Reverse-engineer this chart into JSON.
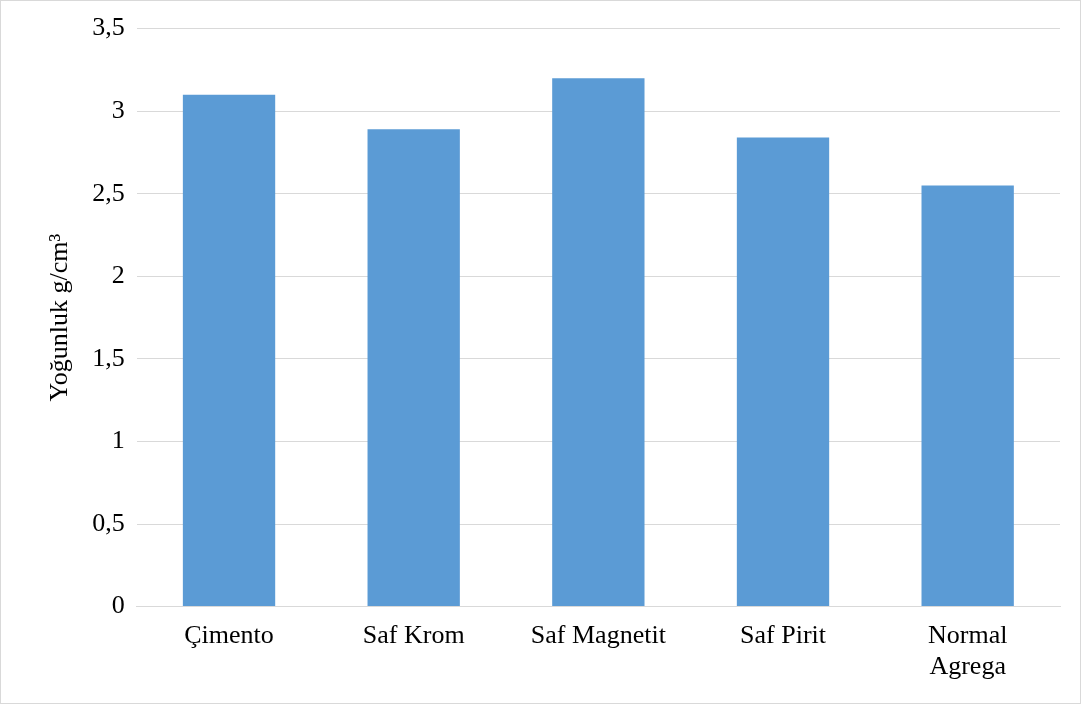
{
  "chart_data": {
    "type": "bar",
    "ylabel": "Yoğunluk g/cm³",
    "categories": [
      "Çimento",
      "Saf Krom",
      "Saf Magnetit",
      "Saf Pirit",
      "Normal Agrega"
    ],
    "values": [
      3.1,
      2.89,
      3.2,
      2.84,
      2.55
    ],
    "color": "#5b9bd5",
    "ylim": [
      0,
      3.5
    ],
    "yticks": [
      0,
      {
        "value": 0.5,
        "label": "0,5"
      },
      1,
      {
        "value": 1.5,
        "label": "1,5"
      },
      2,
      {
        "value": 2.5,
        "label": "2,5"
      },
      3,
      {
        "value": 3.5,
        "label": "3,5"
      }
    ],
    "grid": "y",
    "legend": false
  }
}
